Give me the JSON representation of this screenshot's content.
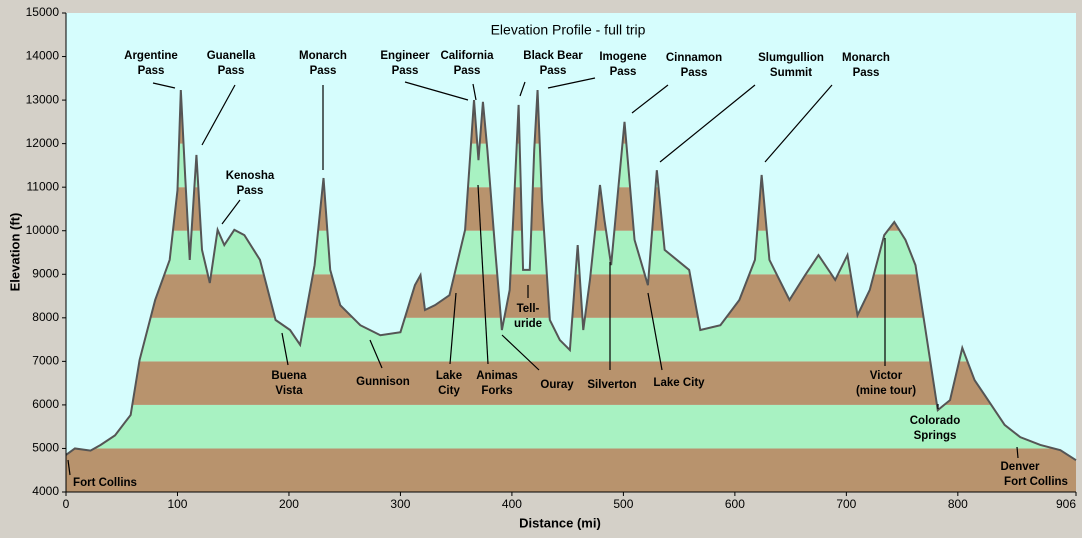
{
  "chart_data": {
    "type": "area",
    "title": "Elevation Profile - full trip",
    "xlabel": "Distance   (mi)",
    "ylabel": "Elevation  (ft)",
    "xlim": [
      0,
      906
    ],
    "ylim": [
      4000,
      15000
    ],
    "xticks": [
      0,
      100,
      200,
      300,
      400,
      500,
      600,
      700,
      800,
      906
    ],
    "yticks": [
      4000,
      5000,
      6000,
      7000,
      8000,
      9000,
      10000,
      11000,
      12000,
      13000,
      14000,
      15000
    ],
    "band_colors": [
      "#b8936d",
      "#a8f2c2"
    ],
    "line_color": "#555555",
    "background": "#d6fdfd",
    "x": [
      0,
      8,
      22,
      31,
      44,
      58,
      66,
      80,
      93,
      100,
      103,
      107,
      111,
      117,
      122,
      129,
      136,
      142,
      151,
      160,
      174,
      188,
      201,
      210,
      214,
      223,
      231,
      237,
      246,
      264,
      282,
      300,
      313,
      318,
      322,
      331,
      344,
      358,
      366,
      370,
      374,
      378,
      385,
      391,
      398,
      402,
      406,
      410,
      416,
      420,
      423,
      427,
      434,
      443,
      452,
      459,
      464,
      470,
      479,
      483,
      489,
      501,
      510,
      522,
      530,
      537,
      559,
      569,
      587,
      604,
      618,
      624,
      631,
      649,
      663,
      675,
      690,
      701,
      710,
      721,
      734,
      743,
      753,
      762,
      771,
      782,
      793,
      804,
      815,
      824,
      842,
      856,
      874,
      892,
      906
    ],
    "values": [
      4850,
      5000,
      4950,
      5080,
      5300,
      5770,
      7030,
      8410,
      9330,
      10930,
      13230,
      11200,
      9330,
      11740,
      9560,
      8800,
      10020,
      9670,
      10020,
      9900,
      9330,
      7950,
      7720,
      7380,
      7950,
      9210,
      11210,
      9100,
      8290,
      7830,
      7600,
      7670,
      8750,
      8980,
      8180,
      8290,
      8520,
      10020,
      13000,
      11620,
      12960,
      11850,
      9560,
      7720,
      8640,
      10700,
      12890,
      9100,
      9100,
      11850,
      13230,
      10700,
      7950,
      7490,
      7260,
      9670,
      7720,
      8870,
      11050,
      10250,
      9210,
      12500,
      9790,
      8750,
      11390,
      9560,
      9100,
      7720,
      7830,
      8410,
      9330,
      11280,
      9330,
      8410,
      8980,
      9440,
      8870,
      9440,
      8060,
      8640,
      9900,
      10200,
      9790,
      9210,
      7720,
      5880,
      6110,
      7310,
      6570,
      6230,
      5540,
      5260,
      5080,
      4960,
      4730
    ],
    "annotations": [
      {
        "text": [
          "Argentine",
          "Pass"
        ]
      },
      {
        "text": [
          "Guanella",
          "Pass"
        ]
      },
      {
        "text": [
          "Kenosha",
          "Pass"
        ]
      },
      {
        "text": [
          "Monarch",
          "Pass"
        ]
      },
      {
        "text": [
          "Engineer",
          "Pass"
        ]
      },
      {
        "text": [
          "California",
          "Pass"
        ]
      },
      {
        "text": [
          "Black Bear",
          "Pass"
        ]
      },
      {
        "text": [
          "Imogene",
          "Pass"
        ]
      },
      {
        "text": [
          "Cinnamon",
          "Pass"
        ]
      },
      {
        "text": [
          "Slumgullion",
          "Summit"
        ]
      },
      {
        "text": [
          "Monarch",
          "Pass"
        ]
      },
      {
        "text": [
          "Buena",
          "Vista"
        ]
      },
      {
        "text": [
          "Gunnison"
        ]
      },
      {
        "text": [
          "Lake",
          "City"
        ]
      },
      {
        "text": [
          "Animas",
          "Forks"
        ]
      },
      {
        "text": [
          "Tell-",
          "uride"
        ]
      },
      {
        "text": [
          "Ouray"
        ]
      },
      {
        "text": [
          "Silverton"
        ]
      },
      {
        "text": [
          "Lake City"
        ]
      },
      {
        "text": [
          "Victor",
          "(mine tour)"
        ]
      },
      {
        "text": [
          "Colorado",
          "Springs"
        ]
      },
      {
        "text": [
          "Denver",
          "Fort Collins"
        ]
      },
      {
        "text": [
          "Fort Collins"
        ]
      }
    ]
  }
}
